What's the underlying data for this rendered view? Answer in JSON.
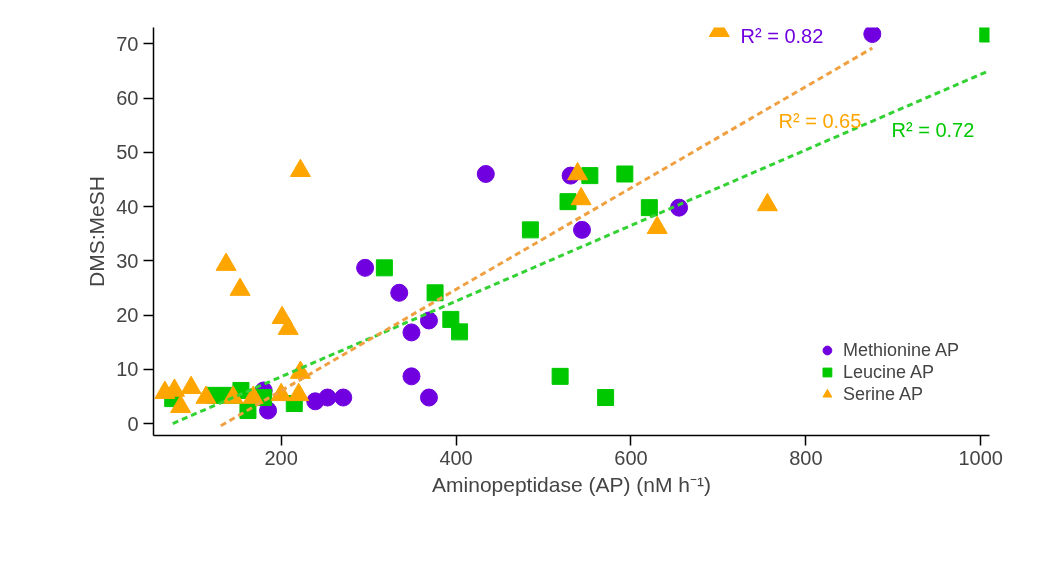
{
  "chart_data": {
    "type": "scatter",
    "xlabel": "Aminopeptidase (AP) (nM h⁻¹)",
    "ylabel": "DMS:MeSH",
    "xlim": [
      54,
      1010
    ],
    "ylim": [
      -2.2,
      73
    ],
    "xticks": [
      200,
      400,
      600,
      800,
      1000
    ],
    "yticks": [
      0,
      10,
      20,
      30,
      40,
      50,
      60,
      70
    ],
    "grid": false,
    "legend": "bottom right",
    "series": [
      {
        "name": "Methionine AP",
        "color": "#7000e0",
        "marker": "circle",
        "x": [
          434,
          296,
          335,
          369,
          349,
          349,
          369,
          271,
          253,
          239,
          185,
          180,
          531,
          544,
          655,
          876
        ],
        "values": [
          46.0,
          28.7,
          24.1,
          19.0,
          16.8,
          8.7,
          4.8,
          4.8,
          4.8,
          4.1,
          2.4,
          6.1,
          45.7,
          35.7,
          39.8,
          71.8
        ]
      },
      {
        "name": "Leucine AP",
        "color": "#00c800",
        "marker": "square",
        "x": [
          1008,
          553,
          593,
          528,
          621,
          485,
          376,
          394,
          404,
          519,
          571,
          318,
          215,
          180,
          162,
          154,
          142,
          124,
          76
        ],
        "values": [
          71.8,
          45.7,
          46.0,
          40.9,
          39.8,
          35.7,
          24.1,
          19.2,
          16.9,
          8.7,
          4.8,
          28.7,
          3.7,
          4.8,
          2.4,
          6.1,
          5.2,
          5.2,
          4.6
        ]
      },
      {
        "name": "Serine AP",
        "color": "#ffa500",
        "marker": "triangle",
        "x": [
          701,
          756,
          630,
          539,
          543,
          222,
          137,
          153,
          201,
          208,
          222,
          220,
          200,
          168,
          145,
          114,
          97,
          85,
          78,
          67
        ],
        "values": [
          72.4,
          40.3,
          36.1,
          46.0,
          41.4,
          46.6,
          29.3,
          24.7,
          19.5,
          17.5,
          9.4,
          5.3,
          5.3,
          4.8,
          4.8,
          4.8,
          6.6,
          3.1,
          6.1,
          5.7
        ]
      },
      {
        "type": "line",
        "color": "#32d232",
        "line_style": "dashed",
        "marker": "none",
        "x": [
          76,
          1009
        ],
        "values": [
          0,
          65.0
        ]
      },
      {
        "type": "line",
        "color": "#f0a040",
        "line_style": "dashed",
        "marker": "none",
        "x": [
          131,
          876
        ],
        "values": [
          -0.4,
          69.2
        ]
      }
    ],
    "annotations": [
      "R² = 0.82",
      "R² = 0.72",
      "R² = 0.65"
    ]
  }
}
